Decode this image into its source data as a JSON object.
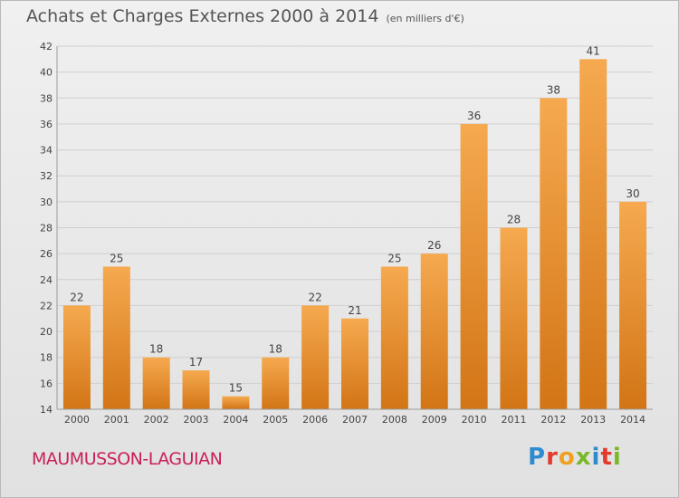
{
  "header": {
    "title": "Achats et Charges Externes 2000 à 2014",
    "unit": "(en milliers d'€)"
  },
  "footer": {
    "commune": "MAUMUSSON-LAGUIAN",
    "logo_text": "Proxiti",
    "logo_colors": [
      "#2e8bd0",
      "#e23a2c",
      "#f0a020",
      "#7ab828",
      "#2e8bd0",
      "#e23a2c",
      "#7ab828"
    ]
  },
  "colors": {
    "bar_top": "#f6a94f",
    "bar_bottom": "#d27516",
    "grid": "#cfcfcf",
    "axis_text": "#444444"
  },
  "chart_data": {
    "type": "bar",
    "title": "Achats et Charges Externes 2000 à 2014",
    "subtitle": "(en milliers d'€)",
    "categories": [
      "2000",
      "2001",
      "2002",
      "2003",
      "2004",
      "2005",
      "2006",
      "2007",
      "2008",
      "2009",
      "2010",
      "2011",
      "2012",
      "2013",
      "2014"
    ],
    "values": [
      22,
      25,
      18,
      17,
      15,
      18,
      22,
      21,
      25,
      26,
      36,
      28,
      38,
      41,
      30
    ],
    "yticks": [
      14,
      16,
      18,
      20,
      22,
      24,
      26,
      28,
      30,
      32,
      34,
      36,
      38,
      40,
      42
    ],
    "ylim": [
      14,
      42
    ],
    "grid": true,
    "data_labels": true
  }
}
